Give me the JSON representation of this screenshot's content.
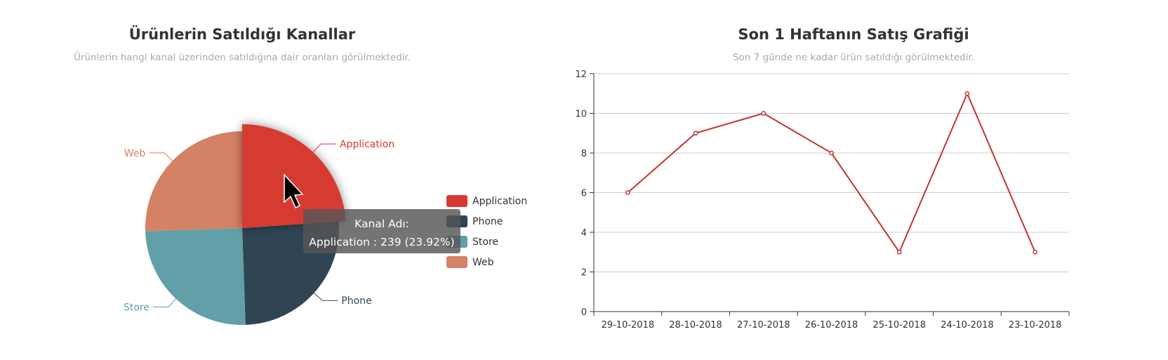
{
  "pie_panel": {
    "title": "Ürünlerin Satıldığı Kanallar",
    "subtitle": "Ürünlerin hangi kanal üzerinden satıldığına dair oranları görülmektedir."
  },
  "line_panel": {
    "title": "Son 1 Haftanın Satış Grafiği",
    "subtitle": "Son 7 günde ne kadar ürün satıldığı görülmektedir."
  },
  "tooltip": {
    "line1": "Kanal Adı:",
    "line2": "Application : 239 (23.92%)"
  },
  "colors": {
    "application": "#d63a31",
    "phone": "#2f4554",
    "store": "#61a0a8",
    "web": "#d48265",
    "line": "#c23531",
    "axis": "#333333",
    "grid": "#cccccc"
  },
  "chart_data": [
    {
      "type": "pie",
      "title": "Ürünlerin Satıldığı Kanallar",
      "subtitle": "Ürünlerin hangi kanal üzerinden satıldığına dair oranları görülmektedir.",
      "slices": [
        {
          "name": "Application",
          "value": 239,
          "percent": 23.92,
          "color": "#d63a31"
        },
        {
          "name": "Phone",
          "value": 255,
          "color": "#2f4554"
        },
        {
          "name": "Store",
          "value": 250,
          "color": "#61a0a8"
        },
        {
          "name": "Web",
          "value": 255,
          "color": "#d48265"
        }
      ],
      "legend": [
        "Application",
        "Phone",
        "Store",
        "Web"
      ],
      "legend_position": "right",
      "highlighted": "Application"
    },
    {
      "type": "line",
      "title": "Son 1 Haftanın Satış Grafiği",
      "subtitle": "Son 7 günde ne kadar ürün satıldığı görülmektedir.",
      "categories": [
        "29-10-2018",
        "28-10-2018",
        "27-10-2018",
        "26-10-2018",
        "25-10-2018",
        "24-10-2018",
        "23-10-2018"
      ],
      "series": [
        {
          "values": [
            6,
            9,
            10,
            8,
            3,
            11,
            3
          ]
        }
      ],
      "ylim": [
        0,
        12
      ],
      "yticks": [
        "0",
        "2",
        "4",
        "6",
        "8",
        "10",
        "12"
      ],
      "grid": true
    }
  ]
}
